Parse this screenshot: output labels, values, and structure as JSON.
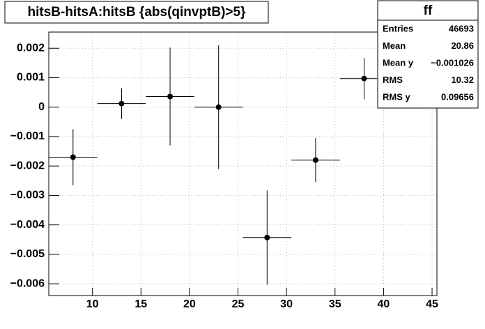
{
  "chart_data": {
    "type": "profile",
    "title": "hitsB-hitsA:hitsB {abs(qinvptB)>5}",
    "x": [
      8,
      13,
      18,
      23,
      28,
      33,
      38
    ],
    "xerr": [
      2.5,
      2.5,
      2.5,
      2.5,
      2.5,
      2.5,
      2.5
    ],
    "values": [
      -0.0017,
      0.00012,
      0.00036,
      0,
      -0.00443,
      -0.0018,
      0.00097
    ],
    "errors": [
      0.00095,
      0.00052,
      0.00166,
      0.0021,
      0.0016,
      0.00075,
      0.0007
    ],
    "color": "#000000",
    "xlim": [
      5.5,
      45.5
    ],
    "ylim": [
      -0.0064,
      0.00255
    ],
    "xticks": [
      10,
      15,
      20,
      25,
      30,
      35,
      40,
      45
    ],
    "yticks": [
      0.002,
      0.001,
      0,
      {
        "value": -0.001,
        "label": "−0.001"
      },
      {
        "value": -0.002,
        "label": "−0.002"
      },
      {
        "value": -0.003,
        "label": "−0.003"
      },
      {
        "value": -0.004,
        "label": "−0.004"
      },
      {
        "value": -0.005,
        "label": "−0.005"
      },
      {
        "value": -0.006,
        "label": "−0.006"
      }
    ],
    "grid": true,
    "stats": {
      "name": "ff",
      "rows": [
        [
          "Entries",
          "46693"
        ],
        [
          "Mean",
          "20.86"
        ],
        [
          "Mean y",
          "−0.001026"
        ],
        [
          "RMS",
          "10.32"
        ],
        [
          "RMS y",
          "0.09656"
        ]
      ]
    }
  }
}
